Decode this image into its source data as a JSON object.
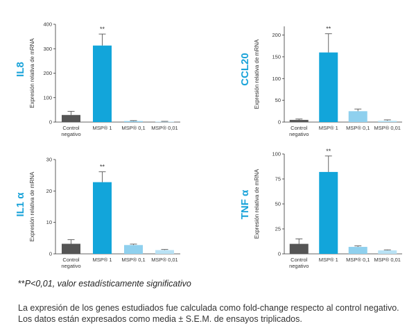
{
  "chart_data": [
    {
      "type": "bar",
      "gene": "IL8",
      "ylabel": "Expresión relativa de mRNA",
      "ylim": [
        0,
        400
      ],
      "yticks": [
        0,
        100,
        200,
        300,
        400
      ],
      "categories": [
        "Control negativo",
        "MSP® 1",
        "MSP® 0,1",
        "MSP® 0,01"
      ],
      "values": [
        29,
        313,
        4,
        2
      ],
      "errors": [
        15,
        47,
        2,
        1
      ],
      "significance": [
        "",
        "**",
        "",
        ""
      ]
    },
    {
      "type": "bar",
      "gene": "CCL20",
      "ylabel": "Expresión relativa de mRNA",
      "ylim": [
        0,
        220
      ],
      "yticks": [
        0,
        50,
        100,
        150,
        200
      ],
      "categories": [
        "Control negativo",
        "MSP® 1",
        "MSP® 0,1",
        "MSP® 0,01"
      ],
      "values": [
        5,
        160,
        25,
        3
      ],
      "errors": [
        2,
        43,
        5,
        2
      ],
      "significance": [
        "",
        "**",
        "",
        ""
      ]
    },
    {
      "type": "bar",
      "gene": "IL1 α",
      "ylabel": "Expresión relativa de mRNA",
      "ylim": [
        0,
        30
      ],
      "yticks": [
        0,
        10,
        20,
        30
      ],
      "categories": [
        "Control negativo",
        "MSP® 1",
        "MSP® 0,1",
        "MSP® 0,01"
      ],
      "values": [
        3.2,
        22.8,
        2.8,
        1.2
      ],
      "errors": [
        1.3,
        3.3,
        0.3,
        0.2
      ],
      "significance": [
        "",
        "**",
        "",
        ""
      ]
    },
    {
      "type": "bar",
      "gene": "TNF α",
      "ylabel": "Expresión relativa de mRNA",
      "ylim": [
        0,
        100
      ],
      "yticks": [
        0,
        25,
        50,
        75,
        100
      ],
      "categories": [
        "Control negativo",
        "MSP® 1",
        "MSP® 0,1",
        "MSP® 0,01"
      ],
      "values": [
        10,
        82,
        7,
        3.5
      ],
      "errors": [
        5,
        16,
        1,
        0.5
      ],
      "significance": [
        "",
        "**",
        "",
        ""
      ]
    }
  ],
  "colors": [
    "#555555",
    "#12a5da",
    "#8fd0ee",
    "#b9e2f5"
  ],
  "footnote": {
    "stars": "**",
    "text": "P<0,01, valor estadísticamente significativo"
  },
  "caption": "La expresión de los genes estudiados fue calculada como fold-change respecto al control negativo. Los datos están expresados como media ± S.E.M. de ensayos triplicados."
}
